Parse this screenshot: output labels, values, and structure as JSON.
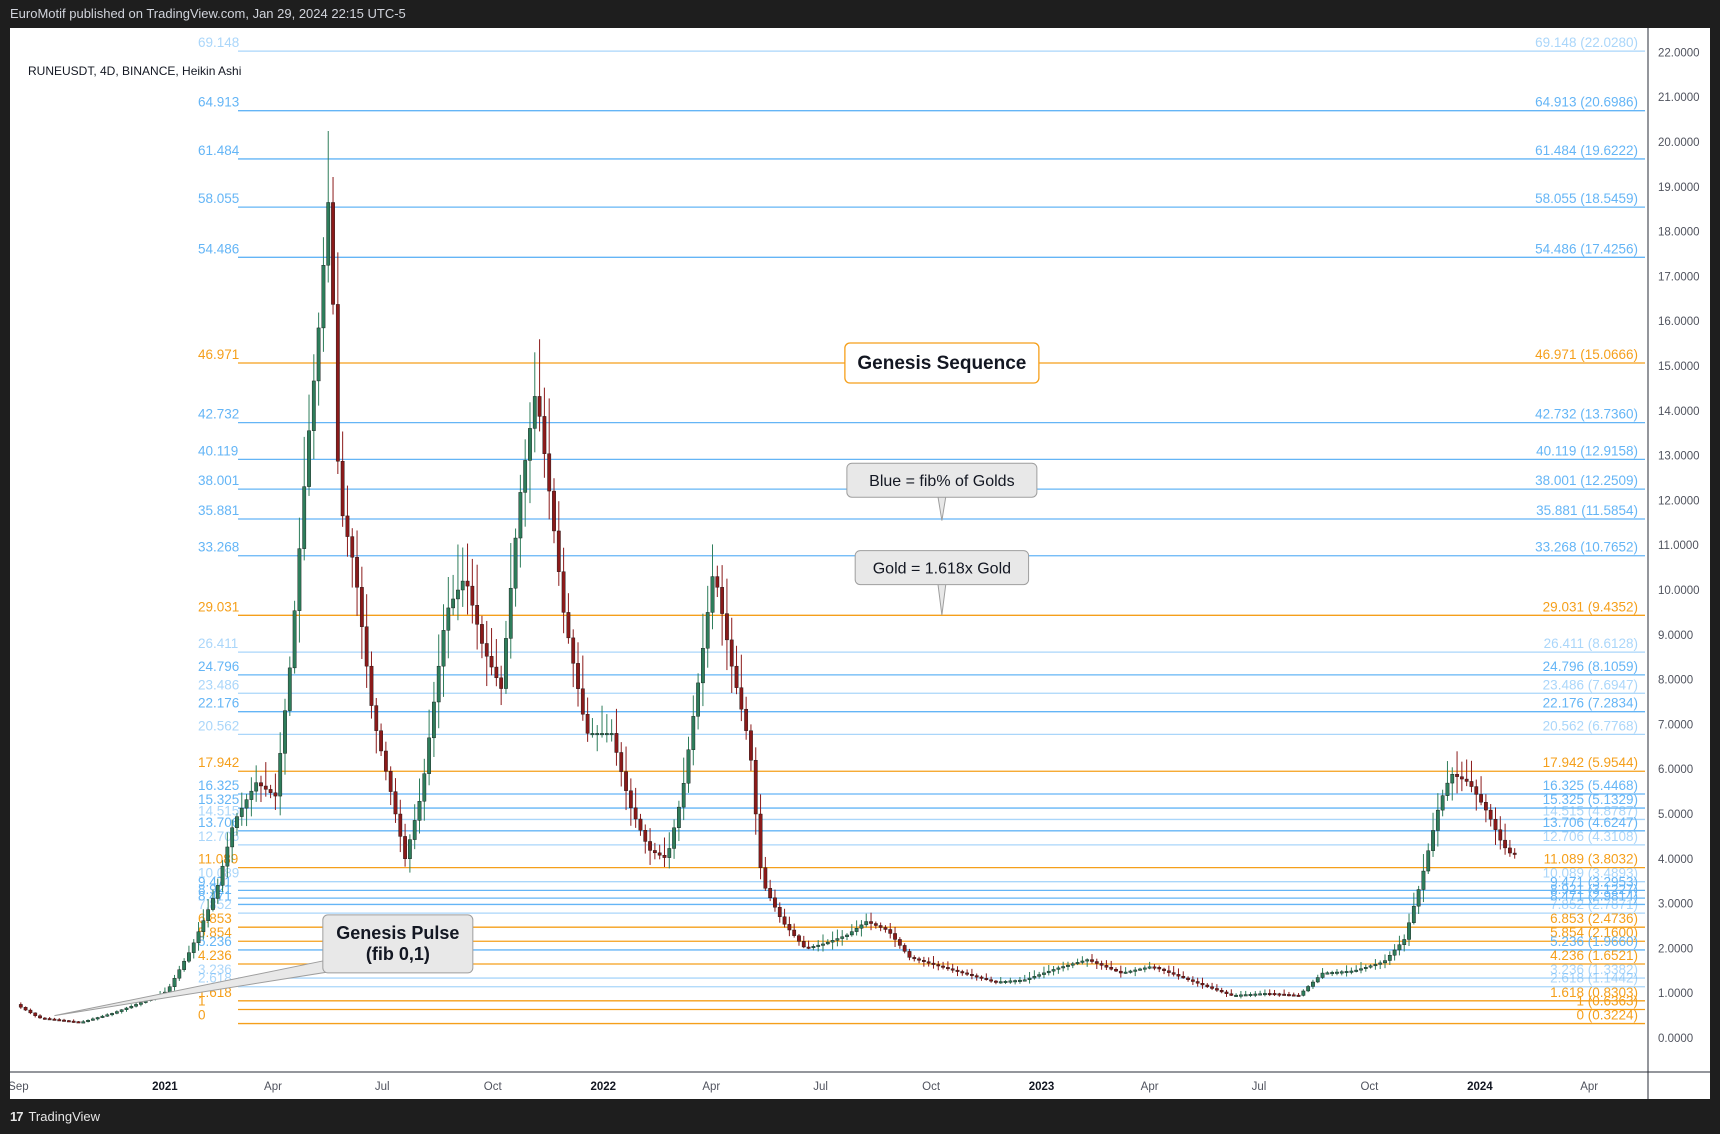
{
  "header": {
    "publisher_text": "EuroMotif published on TradingView.com, Jan 29, 2024 22:15 UTC-5"
  },
  "symbol": {
    "text": "RUNEUSDT, 4D, BINANCE, Heikin Ashi"
  },
  "footer": {
    "brand": "TradingView",
    "brand_mark": "17"
  },
  "colors": {
    "blue": "#90caf9",
    "blue_strong": "#64b5f6",
    "gold": "#f59f1a",
    "up": "#2e7d5b",
    "down": "#8b1a1a",
    "axis_text": "#50535e"
  },
  "chart_data": {
    "type": "candlestick",
    "style": "Heikin Ashi",
    "grid": false,
    "y_axis": {
      "ylim": [
        -0.2,
        22.3
      ],
      "tick_labels": [
        "22.0000",
        "21.0000",
        "20.0000",
        "19.0000",
        "18.0000",
        "17.0000",
        "16.0000",
        "15.0000",
        "14.0000",
        "13.0000",
        "12.0000",
        "11.0000",
        "10.0000",
        "9.0000",
        "8.0000",
        "7.0000",
        "6.0000",
        "5.0000",
        "4.0000",
        "3.0000",
        "2.0000",
        "1.0000",
        "0.0000"
      ]
    },
    "x_axis": {
      "xlim": [
        "2020-08-25",
        "2024-05-20"
      ],
      "ticks": [
        {
          "label": "Sep",
          "date": "2020-09-01",
          "bold": false
        },
        {
          "label": "2021",
          "date": "2021-01-01",
          "bold": true
        },
        {
          "label": "Apr",
          "date": "2021-04-01",
          "bold": false
        },
        {
          "label": "Jul",
          "date": "2021-07-01",
          "bold": false
        },
        {
          "label": "Oct",
          "date": "2021-10-01",
          "bold": false
        },
        {
          "label": "2022",
          "date": "2022-01-01",
          "bold": true
        },
        {
          "label": "Apr",
          "date": "2022-04-01",
          "bold": false
        },
        {
          "label": "Jul",
          "date": "2022-07-01",
          "bold": false
        },
        {
          "label": "Oct",
          "date": "2022-10-01",
          "bold": false
        },
        {
          "label": "2023",
          "date": "2023-01-01",
          "bold": true
        },
        {
          "label": "Apr",
          "date": "2023-04-01",
          "bold": false
        },
        {
          "label": "Jul",
          "date": "2023-07-01",
          "bold": false
        },
        {
          "label": "Oct",
          "date": "2023-10-01",
          "bold": false
        },
        {
          "label": "2024",
          "date": "2024-01-01",
          "bold": true
        },
        {
          "label": "Apr",
          "date": "2024-04-01",
          "bold": false
        }
      ]
    },
    "fib_levels": [
      {
        "level": "69.148",
        "price": 22.028,
        "color": "blue",
        "faint": true
      },
      {
        "level": "64.913",
        "price": 20.6986,
        "color": "blue"
      },
      {
        "level": "61.484",
        "price": 19.6222,
        "color": "blue"
      },
      {
        "level": "58.055",
        "price": 18.5459,
        "color": "blue"
      },
      {
        "level": "54.486",
        "price": 17.4256,
        "color": "blue"
      },
      {
        "level": "46.971",
        "price": 15.0666,
        "color": "gold"
      },
      {
        "level": "42.732",
        "price": 13.736,
        "color": "blue"
      },
      {
        "level": "40.119",
        "price": 12.9158,
        "color": "blue"
      },
      {
        "level": "38.001",
        "price": 12.2509,
        "color": "blue"
      },
      {
        "level": "35.881",
        "price": 11.5854,
        "color": "blue"
      },
      {
        "level": "33.268",
        "price": 10.7652,
        "color": "blue"
      },
      {
        "level": "29.031",
        "price": 9.4352,
        "color": "gold"
      },
      {
        "level": "26.411",
        "price": 8.6128,
        "color": "blue",
        "faint": true
      },
      {
        "level": "24.796",
        "price": 8.1059,
        "color": "blue"
      },
      {
        "level": "23.486",
        "price": 7.6947,
        "color": "blue",
        "faint": true
      },
      {
        "level": "22.176",
        "price": 7.2834,
        "color": "blue"
      },
      {
        "level": "20.562",
        "price": 6.7768,
        "color": "blue",
        "faint": true
      },
      {
        "level": "17.942",
        "price": 5.9544,
        "color": "gold"
      },
      {
        "level": "16.325",
        "price": 5.4468,
        "color": "blue"
      },
      {
        "level": "15.325",
        "price": 5.1329,
        "color": "blue"
      },
      {
        "level": "14.515",
        "price": 4.8787,
        "color": "blue",
        "faint": true
      },
      {
        "level": "13.706",
        "price": 4.6247,
        "color": "blue"
      },
      {
        "level": "12.706",
        "price": 4.3108,
        "color": "blue",
        "faint": true
      },
      {
        "level": "11.089",
        "price": 3.8032,
        "color": "gold"
      },
      {
        "level": "10.089",
        "price": 3.4893,
        "color": "blue",
        "faint": true
      },
      {
        "level": "9.471",
        "price": 3.2953,
        "color": "blue"
      },
      {
        "level": "8.921",
        "price": 3.1227,
        "color": "blue"
      },
      {
        "level": "8.471",
        "price": 2.9814,
        "color": "blue"
      },
      {
        "level": "7.852",
        "price": 2.7871,
        "color": "blue",
        "faint": true
      },
      {
        "level": "6.853",
        "price": 2.4736,
        "color": "gold"
      },
      {
        "level": "5.854",
        "price": 2.16,
        "color": "gold"
      },
      {
        "level": "5.236",
        "price": 1.966,
        "color": "blue"
      },
      {
        "level": "4.236",
        "price": 1.6521,
        "color": "gold"
      },
      {
        "level": "3.236",
        "price": 1.3382,
        "color": "blue",
        "faint": true
      },
      {
        "level": "2.618",
        "price": 1.1442,
        "color": "blue",
        "faint": true
      },
      {
        "level": "1.618",
        "price": 0.8303,
        "color": "gold"
      },
      {
        "level": "1",
        "price": 0.6363,
        "color": "gold"
      },
      {
        "level": "0",
        "price": 0.3224,
        "color": "gold"
      }
    ],
    "candles_anchor_path": [
      [
        "2020-09-01",
        0.75
      ],
      [
        "2020-09-20",
        0.45
      ],
      [
        "2020-10-25",
        0.35
      ],
      [
        "2020-11-20",
        0.55
      ],
      [
        "2020-12-20",
        0.85
      ],
      [
        "2021-01-05",
        1.05
      ],
      [
        "2021-01-25",
        2.0
      ],
      [
        "2021-02-15",
        3.3
      ],
      [
        "2021-03-01",
        4.8
      ],
      [
        "2021-03-20",
        5.7
      ],
      [
        "2021-04-05",
        5.4
      ],
      [
        "2021-04-18",
        8.5
      ],
      [
        "2021-05-01",
        13.0
      ],
      [
        "2021-05-10",
        15.5
      ],
      [
        "2021-05-20",
        19.0
      ],
      [
        "2021-05-28",
        12.0
      ],
      [
        "2021-06-10",
        10.5
      ],
      [
        "2021-06-25",
        7.2
      ],
      [
        "2021-07-10",
        5.5
      ],
      [
        "2021-07-22",
        4.0
      ],
      [
        "2021-08-05",
        5.5
      ],
      [
        "2021-08-25",
        9.5
      ],
      [
        "2021-09-10",
        10.3
      ],
      [
        "2021-09-25",
        8.7
      ],
      [
        "2021-10-10",
        7.8
      ],
      [
        "2021-10-25",
        12.0
      ],
      [
        "2021-11-08",
        14.5
      ],
      [
        "2021-11-20",
        12.0
      ],
      [
        "2021-12-01",
        9.5
      ],
      [
        "2021-12-20",
        6.8
      ],
      [
        "2022-01-10",
        6.8
      ],
      [
        "2022-01-25",
        5.2
      ],
      [
        "2022-02-10",
        4.2
      ],
      [
        "2022-02-25",
        4.0
      ],
      [
        "2022-03-10",
        5.5
      ],
      [
        "2022-03-25",
        8.3
      ],
      [
        "2022-04-05",
        10.5
      ],
      [
        "2022-04-20",
        8.3
      ],
      [
        "2022-05-05",
        6.5
      ],
      [
        "2022-05-15",
        3.5
      ],
      [
        "2022-06-01",
        2.6
      ],
      [
        "2022-06-20",
        2.0
      ],
      [
        "2022-07-05",
        2.1
      ],
      [
        "2022-07-25",
        2.3
      ],
      [
        "2022-08-10",
        2.6
      ],
      [
        "2022-08-28",
        2.4
      ],
      [
        "2022-09-15",
        1.8
      ],
      [
        "2022-10-10",
        1.6
      ],
      [
        "2022-11-05",
        1.4
      ],
      [
        "2022-11-25",
        1.25
      ],
      [
        "2022-12-20",
        1.3
      ],
      [
        "2023-01-15",
        1.55
      ],
      [
        "2023-02-10",
        1.75
      ],
      [
        "2023-03-10",
        1.45
      ],
      [
        "2023-04-05",
        1.6
      ],
      [
        "2023-05-05",
        1.3
      ],
      [
        "2023-06-10",
        0.95
      ],
      [
        "2023-07-10",
        1.0
      ],
      [
        "2023-08-05",
        0.95
      ],
      [
        "2023-08-25",
        1.45
      ],
      [
        "2023-09-20",
        1.5
      ],
      [
        "2023-10-15",
        1.7
      ],
      [
        "2023-11-01",
        2.2
      ],
      [
        "2023-11-15",
        3.5
      ],
      [
        "2023-11-30",
        5.2
      ],
      [
        "2023-12-10",
        5.9
      ],
      [
        "2023-12-25",
        5.7
      ],
      [
        "2024-01-10",
        5.0
      ],
      [
        "2024-01-22",
        4.3
      ],
      [
        "2024-01-29",
        4.1
      ]
    ],
    "annotations": [
      {
        "id": "genesis-sequence",
        "text": "Genesis Sequence",
        "style": "gold-box",
        "date": "2022-10-10",
        "price": 15.0666
      },
      {
        "id": "blue-note",
        "text": "Blue = fib% of Golds",
        "style": "callout",
        "date": "2022-10-10",
        "price": 12.45,
        "pointer_price": 11.55
      },
      {
        "id": "gold-note",
        "text": "Gold = 1.618x Gold",
        "style": "callout",
        "date": "2022-10-10",
        "price": 10.5,
        "pointer_price": 9.44
      },
      {
        "id": "genesis-pulse",
        "text": [
          "Genesis Pulse",
          "(fib 0,1)"
        ],
        "style": "callout-left",
        "date": "2021-05-25",
        "price": 2.1,
        "pointer_date": "2020-10-01",
        "pointer_price": 0.5
      }
    ]
  }
}
